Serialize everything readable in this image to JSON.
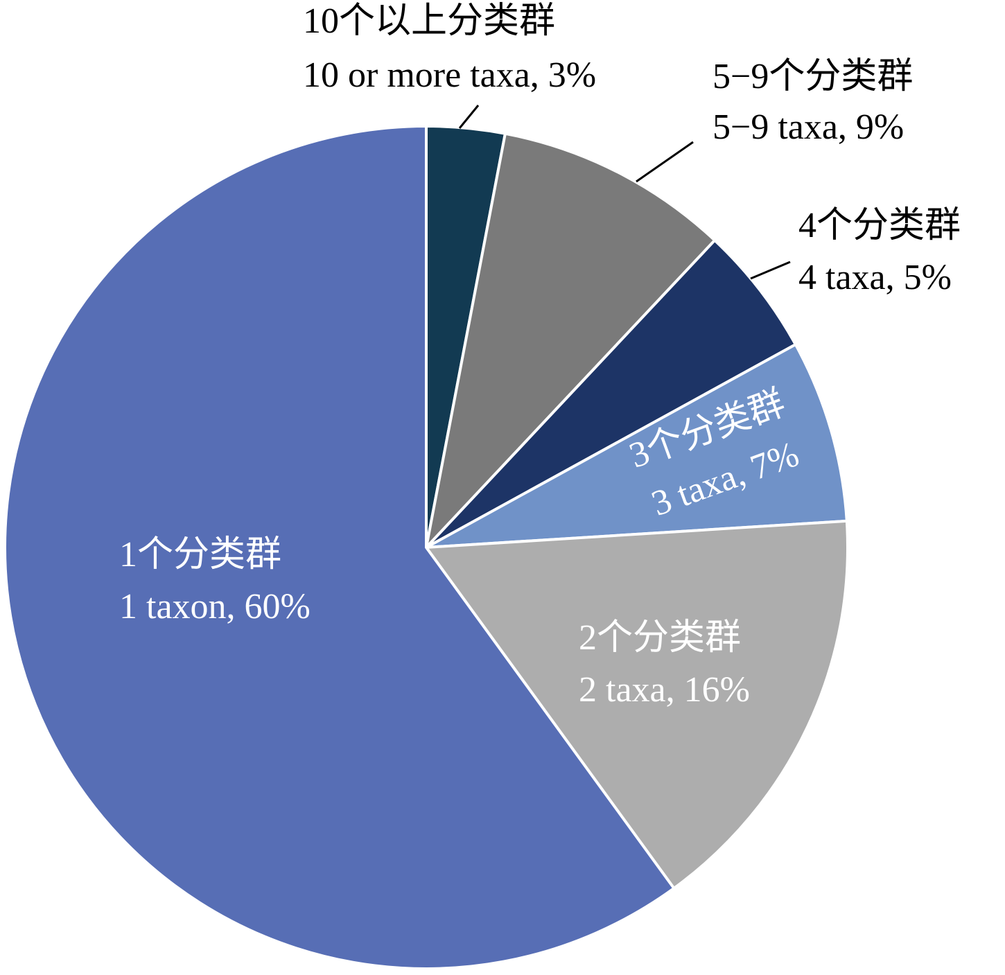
{
  "chart_data": {
    "type": "pie",
    "categories": [
      "10个以上分类群",
      "5−9个分类群",
      "4个分类群",
      "3个分类群",
      "2个分类群",
      "1个分类群"
    ],
    "values": [
      3,
      9,
      5,
      7,
      16,
      60
    ],
    "value_labels": [
      "10 or more taxa, 3%",
      "5−9 taxa, 9%",
      "4 taxa, 5%",
      "3 taxa, 7%",
      "2 taxa, 16%",
      "1 taxon, 60%"
    ],
    "colors": [
      "#123a52",
      "#7a7a7a",
      "#1d3466",
      "#7092c8",
      "#adadad",
      "#576eb5"
    ]
  }
}
